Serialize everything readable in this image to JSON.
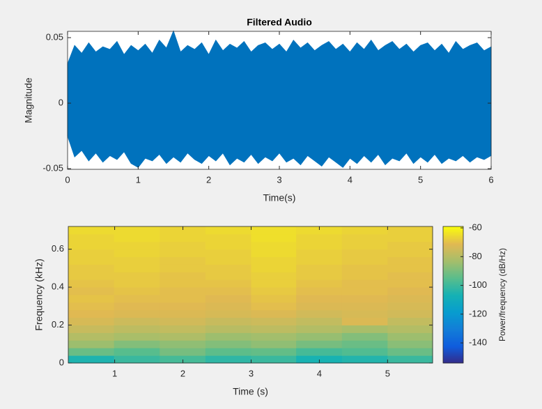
{
  "chart_data": [
    {
      "type": "area",
      "title": "Filtered Audio",
      "xlabel": "Time(s)",
      "ylabel": "Magnitude",
      "x": [
        0,
        0.1,
        0.2,
        0.3,
        0.4,
        0.5,
        0.6,
        0.7,
        0.8,
        0.9,
        1,
        1.1,
        1.2,
        1.3,
        1.4,
        1.5,
        1.6,
        1.7,
        1.8,
        1.9,
        2,
        2.1,
        2.2,
        2.3,
        2.4,
        2.5,
        2.6,
        2.7,
        2.8,
        2.9,
        3,
        3.1,
        3.2,
        3.3,
        3.4,
        3.5,
        3.6,
        3.7,
        3.8,
        3.9,
        4,
        4.1,
        4.2,
        4.3,
        4.4,
        4.5,
        4.6,
        4.7,
        4.8,
        4.9,
        5,
        5.1,
        5.2,
        5.3,
        5.4,
        5.5,
        5.6,
        5.7,
        5.8,
        5.9,
        6
      ],
      "series": [
        {
          "color": "#0072bd",
          "values": [
            0.03,
            0.044,
            0.038,
            0.046,
            0.039,
            0.043,
            0.041,
            0.047,
            0.037,
            0.044,
            0.04,
            0.045,
            0.038,
            0.048,
            0.042,
            0.055,
            0.039,
            0.044,
            0.041,
            0.046,
            0.037,
            0.048,
            0.04,
            0.045,
            0.042,
            0.047,
            0.039,
            0.044,
            0.046,
            0.041,
            0.045,
            0.039,
            0.048,
            0.042,
            0.046,
            0.04,
            0.044,
            0.047,
            0.041,
            0.045,
            0.039,
            0.046,
            0.041,
            0.048,
            0.04,
            0.044,
            0.047,
            0.041,
            0.045,
            0.039,
            0.044,
            0.046,
            0.04,
            0.045,
            0.038,
            0.047,
            0.041,
            0.044,
            0.046,
            0.04,
            0.043
          ]
        },
        {
          "color": "#0072bd",
          "values": [
            -0.025,
            -0.041,
            -0.036,
            -0.044,
            -0.038,
            -0.045,
            -0.04,
            -0.043,
            -0.037,
            -0.046,
            -0.049,
            -0.042,
            -0.044,
            -0.039,
            -0.046,
            -0.041,
            -0.045,
            -0.038,
            -0.043,
            -0.046,
            -0.04,
            -0.044,
            -0.038,
            -0.047,
            -0.042,
            -0.045,
            -0.039,
            -0.046,
            -0.041,
            -0.044,
            -0.038,
            -0.045,
            -0.042,
            -0.047,
            -0.04,
            -0.044,
            -0.048,
            -0.041,
            -0.045,
            -0.049,
            -0.042,
            -0.046,
            -0.04,
            -0.045,
            -0.039,
            -0.047,
            -0.042,
            -0.044,
            -0.038,
            -0.046,
            -0.041,
            -0.045,
            -0.039,
            -0.046,
            -0.042,
            -0.044,
            -0.04,
            -0.045,
            -0.041,
            -0.043,
            -0.04
          ]
        }
      ],
      "xlim": [
        0,
        6
      ],
      "xticks": [
        0,
        1,
        2,
        3,
        4,
        5,
        6
      ],
      "ylim": [
        -0.0505,
        0.0548
      ],
      "yticks": [
        -0.05,
        0,
        0.05
      ]
    },
    {
      "type": "heatmap",
      "xlabel": "Time (s)",
      "ylabel": "Frequency (kHz)",
      "x_edges": [
        0.32,
        0.99,
        1.66,
        2.33,
        3.0,
        3.66,
        4.33,
        5.0,
        5.66
      ],
      "y_edges": [
        0,
        0.04,
        0.08,
        0.12,
        0.16,
        0.2,
        0.24,
        0.28,
        0.32,
        0.36,
        0.4,
        0.44,
        0.48,
        0.52,
        0.56,
        0.6,
        0.64,
        0.68,
        0.72
      ],
      "z": [
        [
          -105,
          -100,
          -98,
          -102,
          -100,
          -106,
          -104,
          -100
        ],
        [
          -92,
          -95,
          -90,
          -94,
          -93,
          -98,
          -96,
          -92
        ],
        [
          -84,
          -88,
          -86,
          -88,
          -86,
          -90,
          -92,
          -87
        ],
        [
          -80,
          -82,
          -81,
          -84,
          -83,
          -85,
          -88,
          -84
        ],
        [
          -76,
          -78,
          -77,
          -79,
          -78,
          -80,
          -82,
          -80
        ],
        [
          -73,
          -75,
          -74,
          -76,
          -75,
          -77,
          -72,
          -77
        ],
        [
          -71,
          -72,
          -72,
          -73,
          -72,
          -74,
          -73,
          -74
        ],
        [
          -70,
          -71,
          -71,
          -72,
          -70,
          -72,
          -72,
          -73
        ],
        [
          -69,
          -70,
          -70,
          -71,
          -69,
          -71,
          -71,
          -72
        ],
        [
          -70,
          -69,
          -70,
          -70,
          -68,
          -70,
          -70,
          -71
        ],
        [
          -69,
          -68,
          -69,
          -69,
          -67,
          -69,
          -70,
          -70
        ],
        [
          -68,
          -68,
          -69,
          -68,
          -67,
          -68,
          -69,
          -70
        ],
        [
          -68,
          -67,
          -68,
          -68,
          -66,
          -68,
          -69,
          -69
        ],
        [
          -67,
          -67,
          -68,
          -67,
          -66,
          -67,
          -68,
          -69
        ],
        [
          -67,
          -66,
          -67,
          -67,
          -65,
          -67,
          -68,
          -68
        ],
        [
          -66,
          -66,
          -67,
          -66,
          -65,
          -66,
          -67,
          -68
        ],
        [
          -66,
          -65,
          -66,
          -66,
          -64,
          -66,
          -67,
          -67
        ],
        [
          -65,
          -65,
          -66,
          -65,
          -64,
          -65,
          -66,
          -67
        ]
      ],
      "xlim": [
        0.32,
        5.66
      ],
      "xticks": [
        1,
        2,
        3,
        4,
        5
      ],
      "ylim": [
        0,
        0.72
      ],
      "yticks": [
        0,
        0.2,
        0.4,
        0.6
      ],
      "colormap": "parula",
      "colorbar": {
        "label": "Power/frequency (dB/Hz)",
        "clim": [
          -154,
          -59
        ],
        "ticks": [
          -60,
          -80,
          -100,
          -120,
          -140
        ]
      }
    }
  ]
}
